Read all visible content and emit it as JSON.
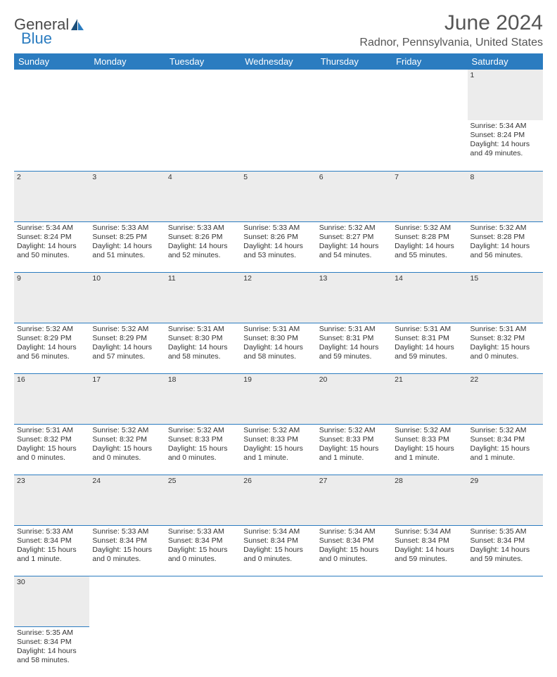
{
  "brand": {
    "part1": "General",
    "part2": "Blue"
  },
  "title": "June 2024",
  "location": "Radnor, Pennsylvania, United States",
  "colors": {
    "accent": "#2b7cc0",
    "header_bg": "#ececec",
    "text": "#333333",
    "bg": "#ffffff"
  },
  "typography": {
    "title_fontsize": 30,
    "location_fontsize": 16,
    "day_fontsize": 13,
    "cell_fontsize": 10.5
  },
  "days": [
    "Sunday",
    "Monday",
    "Tuesday",
    "Wednesday",
    "Thursday",
    "Friday",
    "Saturday"
  ],
  "weeks": [
    [
      null,
      null,
      null,
      null,
      null,
      null,
      {
        "n": "1",
        "sr": "Sunrise: 5:34 AM",
        "ss": "Sunset: 8:24 PM",
        "dl1": "Daylight: 14 hours",
        "dl2": "and 49 minutes."
      }
    ],
    [
      {
        "n": "2",
        "sr": "Sunrise: 5:34 AM",
        "ss": "Sunset: 8:24 PM",
        "dl1": "Daylight: 14 hours",
        "dl2": "and 50 minutes."
      },
      {
        "n": "3",
        "sr": "Sunrise: 5:33 AM",
        "ss": "Sunset: 8:25 PM",
        "dl1": "Daylight: 14 hours",
        "dl2": "and 51 minutes."
      },
      {
        "n": "4",
        "sr": "Sunrise: 5:33 AM",
        "ss": "Sunset: 8:26 PM",
        "dl1": "Daylight: 14 hours",
        "dl2": "and 52 minutes."
      },
      {
        "n": "5",
        "sr": "Sunrise: 5:33 AM",
        "ss": "Sunset: 8:26 PM",
        "dl1": "Daylight: 14 hours",
        "dl2": "and 53 minutes."
      },
      {
        "n": "6",
        "sr": "Sunrise: 5:32 AM",
        "ss": "Sunset: 8:27 PM",
        "dl1": "Daylight: 14 hours",
        "dl2": "and 54 minutes."
      },
      {
        "n": "7",
        "sr": "Sunrise: 5:32 AM",
        "ss": "Sunset: 8:28 PM",
        "dl1": "Daylight: 14 hours",
        "dl2": "and 55 minutes."
      },
      {
        "n": "8",
        "sr": "Sunrise: 5:32 AM",
        "ss": "Sunset: 8:28 PM",
        "dl1": "Daylight: 14 hours",
        "dl2": "and 56 minutes."
      }
    ],
    [
      {
        "n": "9",
        "sr": "Sunrise: 5:32 AM",
        "ss": "Sunset: 8:29 PM",
        "dl1": "Daylight: 14 hours",
        "dl2": "and 56 minutes."
      },
      {
        "n": "10",
        "sr": "Sunrise: 5:32 AM",
        "ss": "Sunset: 8:29 PM",
        "dl1": "Daylight: 14 hours",
        "dl2": "and 57 minutes."
      },
      {
        "n": "11",
        "sr": "Sunrise: 5:31 AM",
        "ss": "Sunset: 8:30 PM",
        "dl1": "Daylight: 14 hours",
        "dl2": "and 58 minutes."
      },
      {
        "n": "12",
        "sr": "Sunrise: 5:31 AM",
        "ss": "Sunset: 8:30 PM",
        "dl1": "Daylight: 14 hours",
        "dl2": "and 58 minutes."
      },
      {
        "n": "13",
        "sr": "Sunrise: 5:31 AM",
        "ss": "Sunset: 8:31 PM",
        "dl1": "Daylight: 14 hours",
        "dl2": "and 59 minutes."
      },
      {
        "n": "14",
        "sr": "Sunrise: 5:31 AM",
        "ss": "Sunset: 8:31 PM",
        "dl1": "Daylight: 14 hours",
        "dl2": "and 59 minutes."
      },
      {
        "n": "15",
        "sr": "Sunrise: 5:31 AM",
        "ss": "Sunset: 8:32 PM",
        "dl1": "Daylight: 15 hours",
        "dl2": "and 0 minutes."
      }
    ],
    [
      {
        "n": "16",
        "sr": "Sunrise: 5:31 AM",
        "ss": "Sunset: 8:32 PM",
        "dl1": "Daylight: 15 hours",
        "dl2": "and 0 minutes."
      },
      {
        "n": "17",
        "sr": "Sunrise: 5:32 AM",
        "ss": "Sunset: 8:32 PM",
        "dl1": "Daylight: 15 hours",
        "dl2": "and 0 minutes."
      },
      {
        "n": "18",
        "sr": "Sunrise: 5:32 AM",
        "ss": "Sunset: 8:33 PM",
        "dl1": "Daylight: 15 hours",
        "dl2": "and 0 minutes."
      },
      {
        "n": "19",
        "sr": "Sunrise: 5:32 AM",
        "ss": "Sunset: 8:33 PM",
        "dl1": "Daylight: 15 hours",
        "dl2": "and 1 minute."
      },
      {
        "n": "20",
        "sr": "Sunrise: 5:32 AM",
        "ss": "Sunset: 8:33 PM",
        "dl1": "Daylight: 15 hours",
        "dl2": "and 1 minute."
      },
      {
        "n": "21",
        "sr": "Sunrise: 5:32 AM",
        "ss": "Sunset: 8:33 PM",
        "dl1": "Daylight: 15 hours",
        "dl2": "and 1 minute."
      },
      {
        "n": "22",
        "sr": "Sunrise: 5:32 AM",
        "ss": "Sunset: 8:34 PM",
        "dl1": "Daylight: 15 hours",
        "dl2": "and 1 minute."
      }
    ],
    [
      {
        "n": "23",
        "sr": "Sunrise: 5:33 AM",
        "ss": "Sunset: 8:34 PM",
        "dl1": "Daylight: 15 hours",
        "dl2": "and 1 minute."
      },
      {
        "n": "24",
        "sr": "Sunrise: 5:33 AM",
        "ss": "Sunset: 8:34 PM",
        "dl1": "Daylight: 15 hours",
        "dl2": "and 0 minutes."
      },
      {
        "n": "25",
        "sr": "Sunrise: 5:33 AM",
        "ss": "Sunset: 8:34 PM",
        "dl1": "Daylight: 15 hours",
        "dl2": "and 0 minutes."
      },
      {
        "n": "26",
        "sr": "Sunrise: 5:34 AM",
        "ss": "Sunset: 8:34 PM",
        "dl1": "Daylight: 15 hours",
        "dl2": "and 0 minutes."
      },
      {
        "n": "27",
        "sr": "Sunrise: 5:34 AM",
        "ss": "Sunset: 8:34 PM",
        "dl1": "Daylight: 15 hours",
        "dl2": "and 0 minutes."
      },
      {
        "n": "28",
        "sr": "Sunrise: 5:34 AM",
        "ss": "Sunset: 8:34 PM",
        "dl1": "Daylight: 14 hours",
        "dl2": "and 59 minutes."
      },
      {
        "n": "29",
        "sr": "Sunrise: 5:35 AM",
        "ss": "Sunset: 8:34 PM",
        "dl1": "Daylight: 14 hours",
        "dl2": "and 59 minutes."
      }
    ],
    [
      {
        "n": "30",
        "sr": "Sunrise: 5:35 AM",
        "ss": "Sunset: 8:34 PM",
        "dl1": "Daylight: 14 hours",
        "dl2": "and 58 minutes."
      },
      null,
      null,
      null,
      null,
      null,
      null
    ]
  ]
}
